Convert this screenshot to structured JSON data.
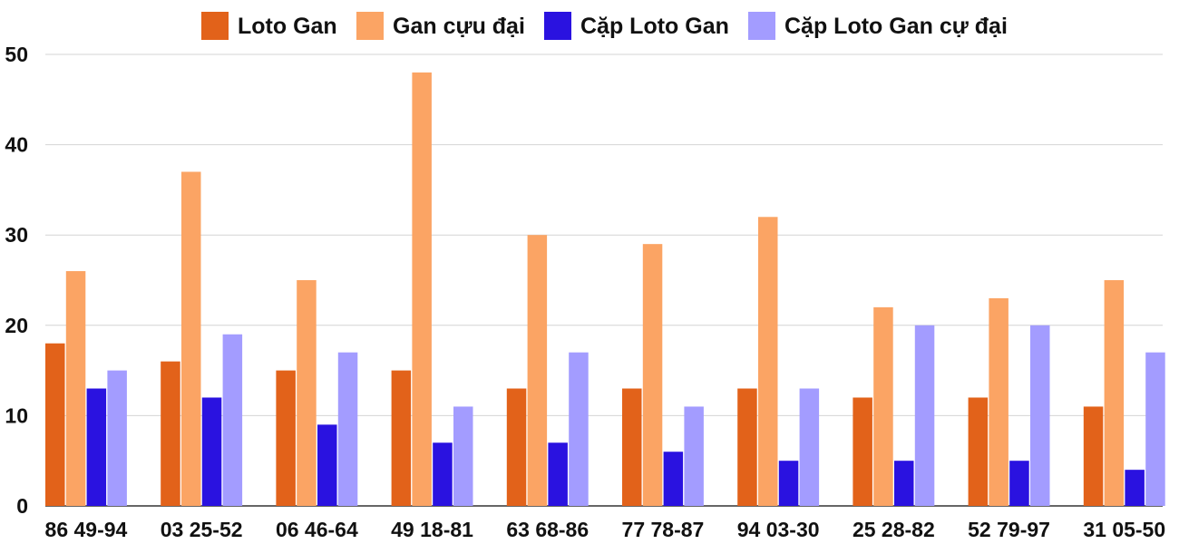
{
  "chart_data": {
    "type": "bar",
    "title": "",
    "xlabel": "",
    "ylabel": "",
    "ylim": [
      0,
      50
    ],
    "yticks": [
      0,
      10,
      20,
      30,
      40,
      50
    ],
    "grid": true,
    "legend_position": "top-center",
    "categories": [
      "86 49-94",
      "03 25-52",
      "06 46-64",
      "49 18-81",
      "63 68-86",
      "77 78-87",
      "94 03-30",
      "25 28-82",
      "52 79-97",
      "31 05-50"
    ],
    "series": [
      {
        "name": "Loto Gan",
        "color": "#e2621a",
        "values": [
          18,
          16,
          15,
          15,
          13,
          13,
          13,
          12,
          12,
          11
        ]
      },
      {
        "name": "Gan cựu đại",
        "color": "#fba464",
        "values": [
          26,
          37,
          25,
          48,
          30,
          29,
          32,
          22,
          23,
          25
        ]
      },
      {
        "name": "Cặp Loto Gan",
        "color": "#2a12e0",
        "values": [
          13,
          12,
          9,
          7,
          7,
          6,
          5,
          5,
          5,
          4
        ]
      },
      {
        "name": "Cặp Loto Gan cự đại",
        "color": "#a39cff",
        "values": [
          15,
          19,
          17,
          11,
          17,
          11,
          13,
          20,
          20,
          17
        ]
      }
    ]
  }
}
